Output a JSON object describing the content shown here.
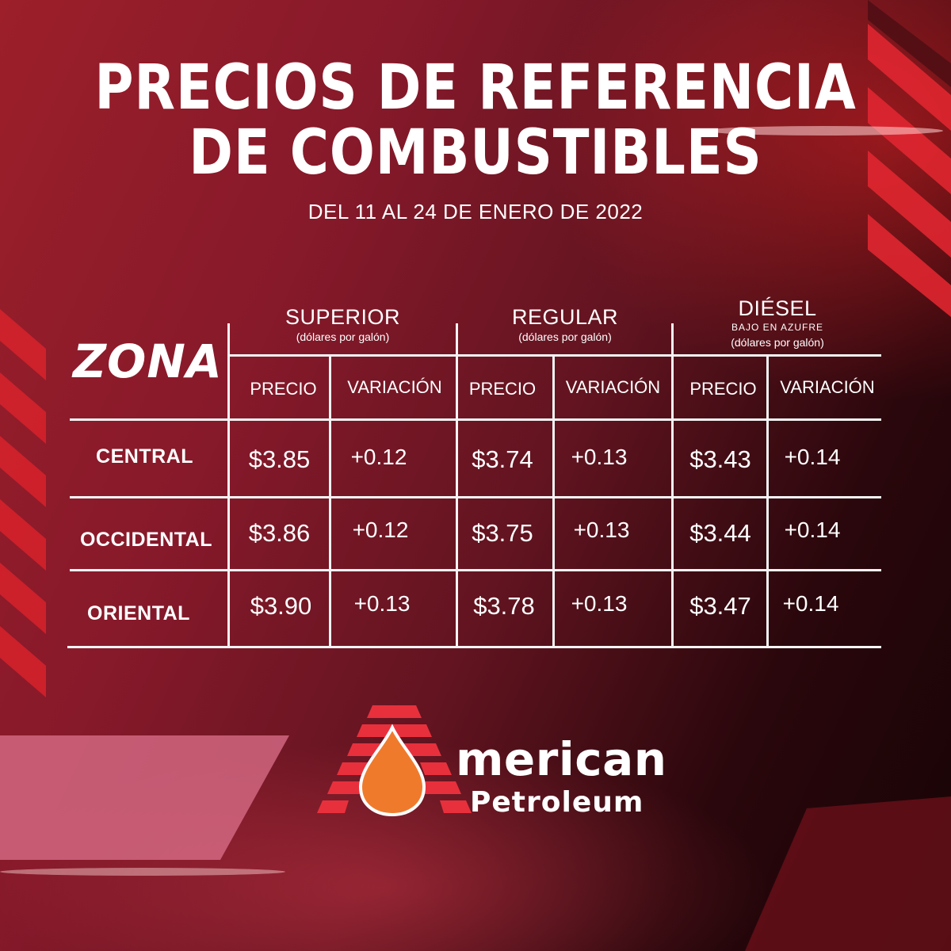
{
  "title": {
    "line1": "PRECIOS DE REFERENCIA",
    "line2": "DE COMBUSTIBLES"
  },
  "subtitle": "DEL 11 AL 24 DE ENERO DE 2022",
  "table": {
    "zone_header": "ZONA",
    "fuels": [
      {
        "name": "SUPERIOR",
        "note": "",
        "unit": "(dólares por galón)"
      },
      {
        "name": "REGULAR",
        "note": "",
        "unit": "(dólares por galón)"
      },
      {
        "name": "DIÉSEL",
        "note": "BAJO EN AZUFRE",
        "unit": "(dólares por galón)"
      }
    ],
    "col_price": "PRECIO",
    "col_variation": "VARIACIÓN",
    "rows": [
      {
        "zone": "CENTRAL",
        "values": [
          "$3.85",
          "+0.12",
          "$3.74",
          "+0.13",
          "$3.43",
          "+0.14"
        ]
      },
      {
        "zone": "OCCIDENTAL",
        "values": [
          "$3.86",
          "+0.12",
          "$3.75",
          "+0.13",
          "$3.44",
          "+0.14"
        ]
      },
      {
        "zone": "ORIENTAL",
        "values": [
          "$3.90",
          "+0.13",
          "$3.78",
          "+0.13",
          "$3.47",
          "+0.14"
        ]
      }
    ]
  },
  "brand": {
    "word1": "merican",
    "word2": "Petroleum",
    "logo_text": "American Petroleum"
  },
  "colors": {
    "background": "#86192a",
    "accent_red": "#e8303c",
    "drop_orange": "#f07a2c",
    "text": "#ffffff"
  }
}
